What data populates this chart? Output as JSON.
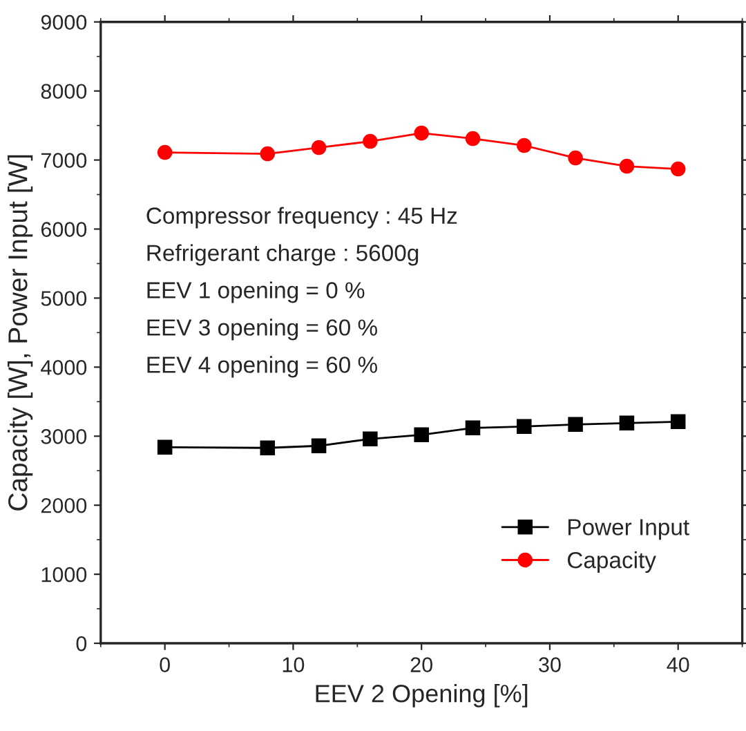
{
  "chart_data": {
    "type": "line",
    "xlabel": "EEV 2 Opening [%]",
    "ylabel": "Capacity [W], Power Input [W]",
    "x": [
      0,
      8,
      12,
      16,
      20,
      24,
      28,
      32,
      36,
      40
    ],
    "series": [
      {
        "name": "Power Input",
        "color": "#000000",
        "marker": "square",
        "values": [
          2840,
          2830,
          2860,
          2960,
          3020,
          3120,
          3140,
          3170,
          3190,
          3210
        ]
      },
      {
        "name": "Capacity",
        "color": "#ff0000",
        "marker": "circle",
        "values": [
          7110,
          7090,
          7180,
          7270,
          7390,
          7310,
          7210,
          7030,
          6910,
          6870
        ]
      }
    ],
    "xlim": [
      -5,
      45
    ],
    "xticks": [
      0,
      10,
      20,
      30,
      40
    ],
    "ylim": [
      0,
      9000
    ],
    "yticks": [
      0,
      1000,
      2000,
      3000,
      4000,
      5000,
      6000,
      7000,
      8000,
      9000
    ],
    "grid": false,
    "legend": "bottom right",
    "line_style": "solid",
    "annotations": [
      "Compressor frequency : 45 Hz",
      "Refrigerant charge : 5600g",
      "EEV 1 opening = 0 %",
      "EEV 3 opening = 60 %",
      "EEV 4 opening = 60 %"
    ]
  }
}
